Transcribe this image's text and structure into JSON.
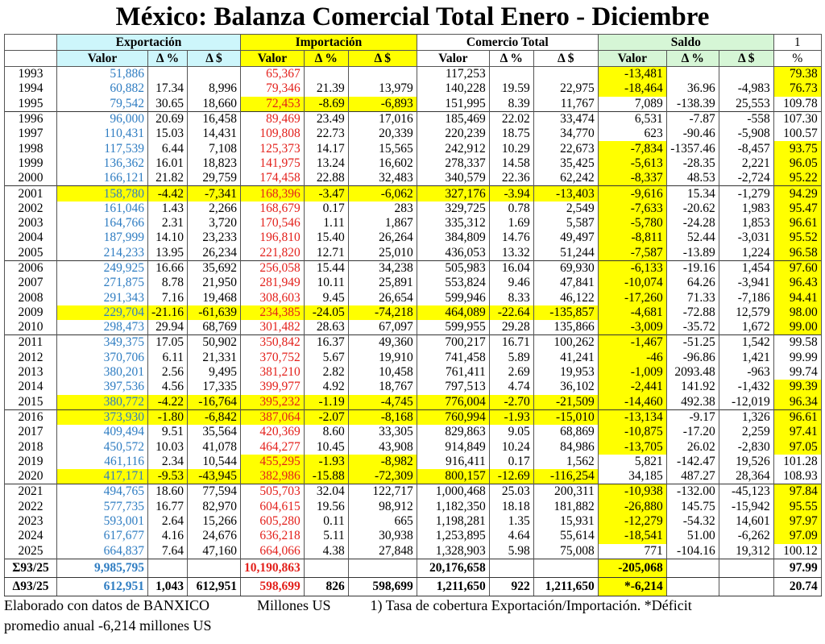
{
  "title": "México: Balanza Comercial Total Enero - Diciembre",
  "colors": {
    "exportacion_header": "#cdf6fb",
    "importacion_header": "#ffff00",
    "saldo_header": "#d6f6d6",
    "highlight": "#ffff00",
    "export_values": "#2f7dc2",
    "import_values": "#e3211c"
  },
  "groups": {
    "exportacion": "Exportación",
    "importacion": "Importación",
    "comercio": "Comercio Total",
    "saldo": "Saldo",
    "cobertura": "1"
  },
  "subheaders": [
    "Valor",
    "Δ %",
    "Δ $",
    "Valor",
    "Δ %",
    "Δ $",
    "Valor",
    "Δ %",
    "Δ $",
    "Valor",
    "Δ %",
    "Δ $",
    "%"
  ],
  "rows": [
    {
      "c": [
        "1993",
        "51,886",
        "",
        "",
        "65,367",
        "",
        "",
        "117,253",
        "",
        "",
        "-13,481",
        "",
        "",
        "79.38"
      ],
      "hl": [
        "sal",
        "pct"
      ]
    },
    {
      "c": [
        "1994",
        "60,882",
        "17.34",
        "8,996",
        "79,346",
        "21.39",
        "13,979",
        "140,228",
        "19.59",
        "22,975",
        "-18,464",
        "36.96",
        "-4,983",
        "76.73"
      ],
      "hl": [
        "sal",
        "pct"
      ]
    },
    {
      "c": [
        "1995",
        "79,542",
        "30.65",
        "18,660",
        "72,453",
        "-8.69",
        "-6,893",
        "151,995",
        "8.39",
        "11,767",
        "7,089",
        "-138.39",
        "25,553",
        "109.78"
      ],
      "hl": [
        "imp"
      ]
    },
    {
      "c": [
        "1996",
        "96,000",
        "20.69",
        "16,458",
        "89,469",
        "23.49",
        "17,016",
        "185,469",
        "22.02",
        "33,474",
        "6,531",
        "-7.87",
        "-558",
        "107.30"
      ],
      "hl": []
    },
    {
      "c": [
        "1997",
        "110,431",
        "15.03",
        "14,431",
        "109,808",
        "22.73",
        "20,339",
        "220,239",
        "18.75",
        "34,770",
        "623",
        "-90.46",
        "-5,908",
        "100.57"
      ],
      "hl": []
    },
    {
      "c": [
        "1998",
        "117,539",
        "6.44",
        "7,108",
        "125,373",
        "14.17",
        "15,565",
        "242,912",
        "10.29",
        "22,673",
        "-7,834",
        "-1357.46",
        "-8,457",
        "93.75"
      ],
      "hl": [
        "sal",
        "pct"
      ]
    },
    {
      "c": [
        "1999",
        "136,362",
        "16.01",
        "18,823",
        "141,975",
        "13.24",
        "16,602",
        "278,337",
        "14.58",
        "35,425",
        "-5,613",
        "-28.35",
        "2,221",
        "96.05"
      ],
      "hl": [
        "sal",
        "pct"
      ]
    },
    {
      "c": [
        "2000",
        "166,121",
        "21.82",
        "29,759",
        "174,458",
        "22.88",
        "32,483",
        "340,579",
        "22.36",
        "62,242",
        "-8,337",
        "48.53",
        "-2,724",
        "95.22"
      ],
      "hl": [
        "sal",
        "pct"
      ]
    },
    {
      "c": [
        "2001",
        "158,780",
        "-4.42",
        "-7,341",
        "168,396",
        "-3.47",
        "-6,062",
        "327,176",
        "-3.94",
        "-13,403",
        "-9,616",
        "15.34",
        "-1,279",
        "94.29"
      ],
      "hl": [
        "exp",
        "imp",
        "tot",
        "sal",
        "pct"
      ]
    },
    {
      "c": [
        "2002",
        "161,046",
        "1.43",
        "2,266",
        "168,679",
        "0.17",
        "283",
        "329,725",
        "0.78",
        "2,549",
        "-7,633",
        "-20.62",
        "1,983",
        "95.47"
      ],
      "hl": [
        "sal",
        "pct"
      ]
    },
    {
      "c": [
        "2003",
        "164,766",
        "2.31",
        "3,720",
        "170,546",
        "1.11",
        "1,867",
        "335,312",
        "1.69",
        "5,587",
        "-5,780",
        "-24.28",
        "1,853",
        "96.61"
      ],
      "hl": [
        "sal",
        "pct"
      ]
    },
    {
      "c": [
        "2004",
        "187,999",
        "14.10",
        "23,233",
        "196,810",
        "15.40",
        "26,264",
        "384,809",
        "14.76",
        "49,497",
        "-8,811",
        "52.44",
        "-3,031",
        "95.52"
      ],
      "hl": [
        "sal",
        "pct"
      ]
    },
    {
      "c": [
        "2005",
        "214,233",
        "13.95",
        "26,234",
        "221,820",
        "12.71",
        "25,010",
        "436,053",
        "13.32",
        "51,244",
        "-7,587",
        "-13.89",
        "1,224",
        "96.58"
      ],
      "hl": [
        "sal",
        "pct"
      ]
    },
    {
      "c": [
        "2006",
        "249,925",
        "16.66",
        "35,692",
        "256,058",
        "15.44",
        "34,238",
        "505,983",
        "16.04",
        "69,930",
        "-6,133",
        "-19.16",
        "1,454",
        "97.60"
      ],
      "hl": [
        "sal",
        "pct"
      ]
    },
    {
      "c": [
        "2007",
        "271,875",
        "8.78",
        "21,950",
        "281,949",
        "10.11",
        "25,891",
        "553,824",
        "9.46",
        "47,841",
        "-10,074",
        "64.26",
        "-3,941",
        "96.43"
      ],
      "hl": [
        "sal",
        "pct"
      ]
    },
    {
      "c": [
        "2008",
        "291,343",
        "7.16",
        "19,468",
        "308,603",
        "9.45",
        "26,654",
        "599,946",
        "8.33",
        "46,122",
        "-17,260",
        "71.33",
        "-7,186",
        "94.41"
      ],
      "hl": [
        "sal",
        "pct"
      ]
    },
    {
      "c": [
        "2009",
        "229,704",
        "-21.16",
        "-61,639",
        "234,385",
        "-24.05",
        "-74,218",
        "464,089",
        "-22.64",
        "-135,857",
        "-4,681",
        "-72.88",
        "12,579",
        "98.00"
      ],
      "hl": [
        "exp",
        "imp",
        "tot",
        "sal",
        "pct"
      ]
    },
    {
      "c": [
        "2010",
        "298,473",
        "29.94",
        "68,769",
        "301,482",
        "28.63",
        "67,097",
        "599,955",
        "29.28",
        "135,866",
        "-3,009",
        "-35.72",
        "1,672",
        "99.00"
      ],
      "hl": [
        "sal",
        "pct"
      ]
    },
    {
      "c": [
        "2011",
        "349,375",
        "17.05",
        "50,902",
        "350,842",
        "16.37",
        "49,360",
        "700,217",
        "16.71",
        "100,262",
        "-1,467",
        "-51.25",
        "1,542",
        "99.58"
      ],
      "hl": [
        "sal"
      ]
    },
    {
      "c": [
        "2012",
        "370,706",
        "6.11",
        "21,331",
        "370,752",
        "5.67",
        "19,910",
        "741,458",
        "5.89",
        "41,241",
        "-46",
        "-96.86",
        "1,421",
        "99.99"
      ],
      "hl": [
        "sal"
      ]
    },
    {
      "c": [
        "2013",
        "380,201",
        "2.56",
        "9,495",
        "381,210",
        "2.82",
        "10,458",
        "761,411",
        "2.69",
        "19,953",
        "-1,009",
        "2093.48",
        "-963",
        "99.74"
      ],
      "hl": [
        "sal"
      ]
    },
    {
      "c": [
        "2014",
        "397,536",
        "4.56",
        "17,335",
        "399,977",
        "4.92",
        "18,767",
        "797,513",
        "4.74",
        "36,102",
        "-2,441",
        "141.92",
        "-1,432",
        "99.39"
      ],
      "hl": [
        "sal",
        "pct"
      ]
    },
    {
      "c": [
        "2015",
        "380,772",
        "-4.22",
        "-16,764",
        "395,232",
        "-1.19",
        "-4,745",
        "776,004",
        "-2.70",
        "-21,509",
        "-14,460",
        "492.38",
        "-12,019",
        "96.34"
      ],
      "hl": [
        "exp",
        "imp",
        "tot",
        "sal",
        "pct"
      ]
    },
    {
      "c": [
        "2016",
        "373,930",
        "-1.80",
        "-6,842",
        "387,064",
        "-2.07",
        "-8,168",
        "760,994",
        "-1.93",
        "-15,010",
        "-13,134",
        "-9.17",
        "1,326",
        "96.61"
      ],
      "hl": [
        "exp",
        "imp",
        "tot",
        "sal",
        "pct"
      ]
    },
    {
      "c": [
        "2017",
        "409,494",
        "9.51",
        "35,564",
        "420,369",
        "8.60",
        "33,305",
        "829,863",
        "9.05",
        "68,869",
        "-10,875",
        "-17.20",
        "2,259",
        "97.41"
      ],
      "hl": [
        "sal",
        "pct"
      ]
    },
    {
      "c": [
        "2018",
        "450,572",
        "10.03",
        "41,078",
        "464,277",
        "10.45",
        "43,908",
        "914,849",
        "10.24",
        "84,986",
        "-13,705",
        "26.02",
        "-2,830",
        "97.05"
      ],
      "hl": [
        "sal",
        "pct"
      ]
    },
    {
      "c": [
        "2019",
        "461,116",
        "2.34",
        "10,544",
        "455,295",
        "-1.93",
        "-8,982",
        "916,411",
        "0.17",
        "1,562",
        "5,821",
        "-142.47",
        "19,526",
        "101.28"
      ],
      "hl": [
        "imp"
      ]
    },
    {
      "c": [
        "2020",
        "417,171",
        "-9.53",
        "-43,945",
        "382,986",
        "-15.88",
        "-72,309",
        "800,157",
        "-12.69",
        "-116,254",
        "34,185",
        "487.27",
        "28,364",
        "108.93"
      ],
      "hl": [
        "exp",
        "imp",
        "tot"
      ]
    },
    {
      "c": [
        "2021",
        "494,765",
        "18.60",
        "77,594",
        "505,703",
        "32.04",
        "122,717",
        "1,000,468",
        "25.03",
        "200,311",
        "-10,938",
        "-132.00",
        "-45,123",
        "97.84"
      ],
      "hl": [
        "sal",
        "pct"
      ]
    },
    {
      "c": [
        "2022",
        "577,735",
        "16.77",
        "82,970",
        "604,615",
        "19.56",
        "98,912",
        "1,182,350",
        "18.18",
        "181,882",
        "-26,880",
        "145.75",
        "-15,942",
        "95.55"
      ],
      "hl": [
        "sal",
        "pct"
      ]
    },
    {
      "c": [
        "2023",
        "593,001",
        "2.64",
        "15,266",
        "605,280",
        "0.11",
        "665",
        "1,198,281",
        "1.35",
        "15,931",
        "-12,279",
        "-54.32",
        "14,601",
        "97.97"
      ],
      "hl": [
        "sal",
        "pct"
      ]
    },
    {
      "c": [
        "2024",
        "617,677",
        "4.16",
        "24,676",
        "636,218",
        "5.11",
        "30,938",
        "1,253,895",
        "4.64",
        "55,614",
        "-18,541",
        "51.00",
        "-6,262",
        "97.09"
      ],
      "hl": [
        "sal",
        "pct"
      ]
    },
    {
      "c": [
        "2025",
        "664,837",
        "7.64",
        "47,160",
        "664,066",
        "4.38",
        "27,848",
        "1,328,903",
        "5.98",
        "75,008",
        "771",
        "-104.16",
        "19,312",
        "100.12"
      ],
      "hl": []
    }
  ],
  "summary": [
    {
      "c": [
        "Σ93/25",
        "9,985,795",
        "",
        "",
        "10,190,863",
        "",
        "",
        "20,176,658",
        "",
        "",
        "-205,068",
        "",
        "",
        "97.99"
      ],
      "hl": [
        "sal"
      ]
    },
    {
      "c": [
        "Δ93/25",
        "612,951",
        "1,043",
        "612,951",
        "598,699",
        "826",
        "598,699",
        "1,211,650",
        "922",
        "1,211,650",
        "*-6,214",
        "",
        "",
        "20.74"
      ],
      "hl": [
        "sal"
      ]
    }
  ],
  "footer": {
    "source": "Elaborado con datos de BANXICO",
    "units": "Millones US",
    "note": "1) Tasa de cobertura Exportación/Importación. *Déficit",
    "note2": "promedio anual -6,214 millones US"
  }
}
